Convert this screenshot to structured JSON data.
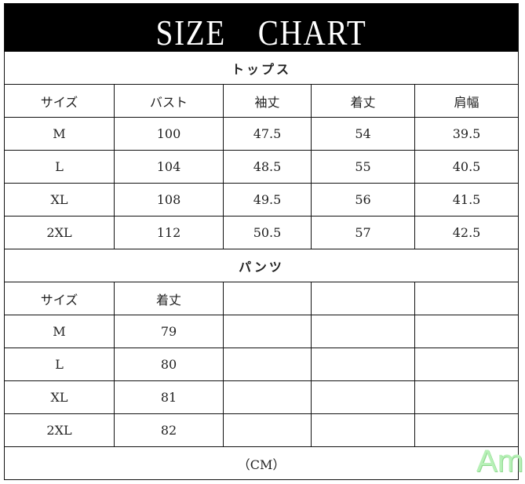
{
  "title": "SIZE　CHART",
  "tops": {
    "section_label": "トップス",
    "headers": [
      "サイズ",
      "バスト",
      "袖丈",
      "着丈",
      "肩幅"
    ],
    "rows": [
      [
        "M",
        "100",
        "47.5",
        "54",
        "39.5"
      ],
      [
        "L",
        "104",
        "48.5",
        "55",
        "40.5"
      ],
      [
        "XL",
        "108",
        "49.5",
        "56",
        "41.5"
      ],
      [
        "2XL",
        "112",
        "50.5",
        "57",
        "42.5"
      ]
    ]
  },
  "pants": {
    "section_label": "パンツ",
    "headers": [
      "サイズ",
      "着丈"
    ],
    "rows": [
      [
        "M",
        "79"
      ],
      [
        "L",
        "80"
      ],
      [
        "XL",
        "81"
      ],
      [
        "2XL",
        "82"
      ]
    ]
  },
  "unit_note": "（CM）",
  "watermark": "Am"
}
